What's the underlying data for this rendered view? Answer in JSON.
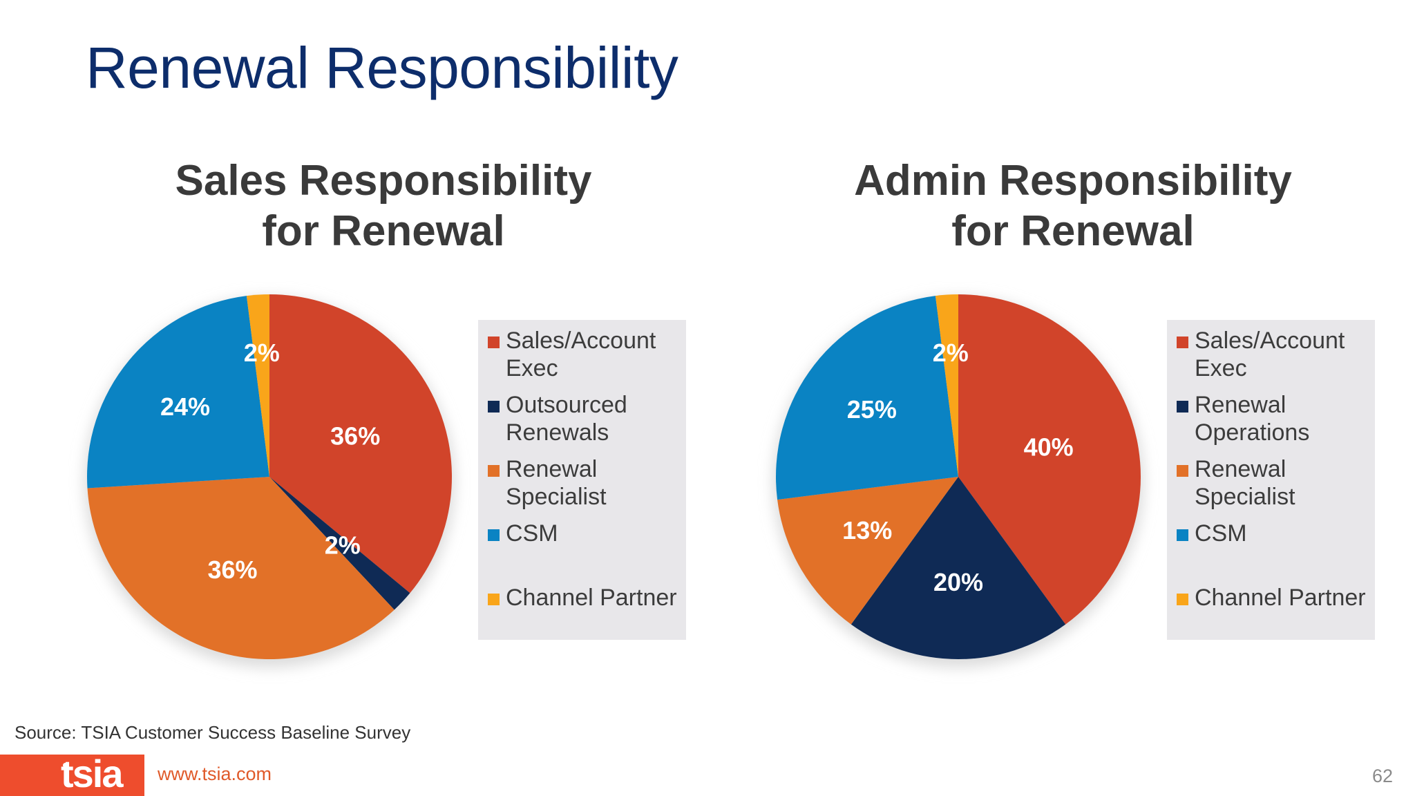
{
  "slide": {
    "title": "Renewal Responsibility",
    "source": "Source: TSIA Customer Success Baseline Survey",
    "logo_text": "tsia",
    "url": "www.tsia.com",
    "page_number": "62"
  },
  "chart_data": [
    {
      "type": "pie",
      "title_lines": [
        "Sales Responsibility",
        "for Renewal"
      ],
      "legend": [
        "Sales/Account Exec",
        "Outsourced Renewals",
        "Renewal Specialist",
        "CSM",
        "Channel Partner"
      ],
      "legend_lines": [
        [
          "Sales/Account",
          "Exec"
        ],
        [
          "Outsourced",
          "Renewals"
        ],
        [
          "Renewal",
          "Specialist"
        ],
        [
          "CSM"
        ],
        [
          "Channel Partner"
        ]
      ],
      "legend_placement": "right",
      "slices": [
        {
          "label": "Sales/Account Exec",
          "value": 36,
          "display": "36%",
          "color": "#d1442a"
        },
        {
          "label": "Outsourced Renewals",
          "value": 2,
          "display": "2%",
          "color": "#0f2a55"
        },
        {
          "label": "Renewal Specialist",
          "value": 36,
          "display": "36%",
          "color": "#e27128"
        },
        {
          "label": "CSM",
          "value": 24,
          "display": "24%",
          "color": "#0a83c3"
        },
        {
          "label": "Channel Partner",
          "value": 2,
          "display": "2%",
          "color": "#f9a51a"
        }
      ]
    },
    {
      "type": "pie",
      "title_lines": [
        "Admin Responsibility",
        "for Renewal"
      ],
      "legend": [
        "Sales/Account Exec",
        "Renewal Operations",
        "Renewal Specialist",
        "CSM",
        "Channel Partner"
      ],
      "legend_lines": [
        [
          "Sales/Account",
          "Exec"
        ],
        [
          "Renewal",
          "Operations"
        ],
        [
          "Renewal",
          "Specialist"
        ],
        [
          "CSM"
        ],
        [
          "Channel Partner"
        ]
      ],
      "legend_placement": "right",
      "slices": [
        {
          "label": "Sales/Account Exec",
          "value": 40,
          "display": "40%",
          "color": "#d1442a"
        },
        {
          "label": "Renewal Operations",
          "value": 20,
          "display": "20%",
          "color": "#0f2a55"
        },
        {
          "label": "Renewal Specialist",
          "value": 13,
          "display": "13%",
          "color": "#e27128"
        },
        {
          "label": "CSM",
          "value": 25,
          "display": "25%",
          "color": "#0a83c3"
        },
        {
          "label": "Channel Partner",
          "value": 2,
          "display": "2%",
          "color": "#f9a51a"
        }
      ]
    }
  ]
}
